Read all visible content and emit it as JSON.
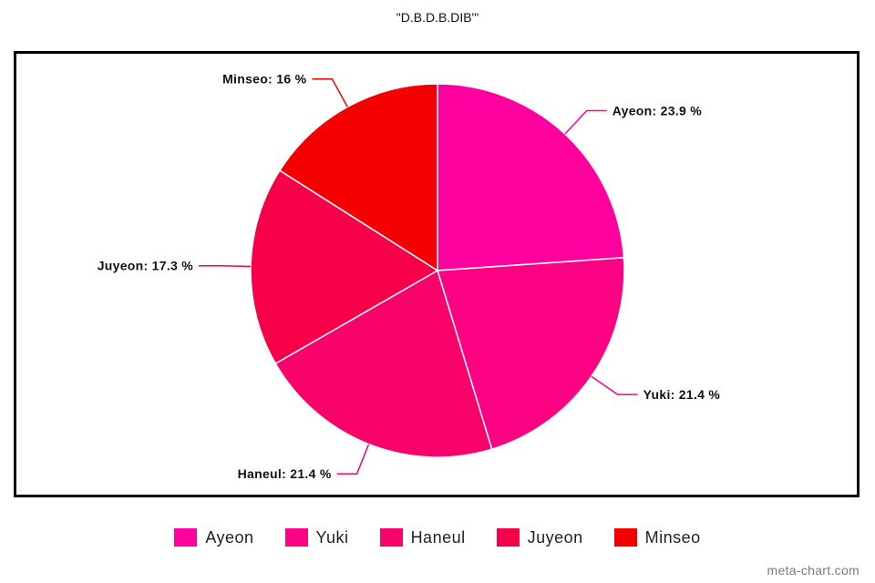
{
  "chart_data": {
    "type": "pie",
    "title": "\"D.B.D.B.DIB'\"",
    "slices": [
      {
        "name": "Ayeon",
        "value": 23.9,
        "label": "Ayeon: 23.9 %",
        "color": "#FF009F"
      },
      {
        "name": "Yuki",
        "value": 21.4,
        "label": "Yuki: 21.4 %",
        "color": "#FC0384"
      },
      {
        "name": "Haneul",
        "value": 21.4,
        "label": "Haneul: 21.4 %",
        "color": "#F7036A"
      },
      {
        "name": "Juyeon",
        "value": 17.3,
        "label": "Juyeon: 17.3 %",
        "color": "#F60049"
      },
      {
        "name": "Minseo",
        "value": 16,
        "label": "Minseo: 16 %",
        "color": "#F50000"
      }
    ],
    "legend_position": "bottom"
  },
  "watermark": "meta-chart.com"
}
